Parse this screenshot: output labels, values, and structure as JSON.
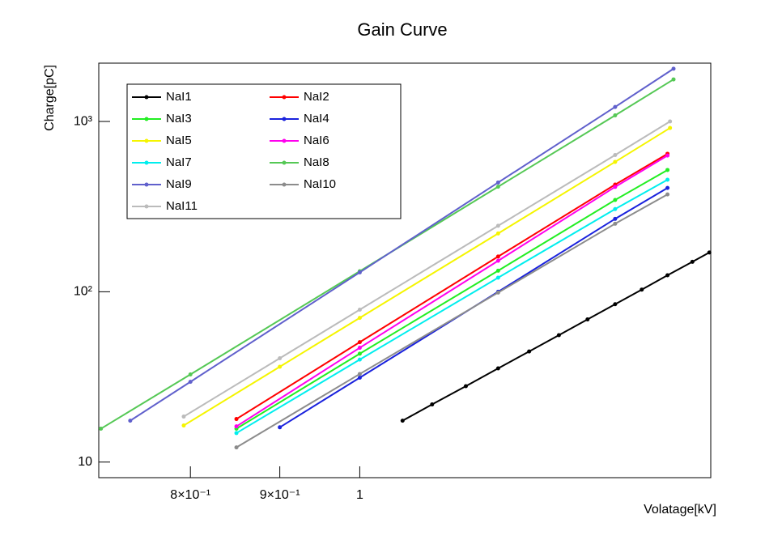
{
  "chart_data": {
    "type": "line",
    "title": "Gain Curve",
    "x_label": "Volatage[kV]",
    "y_label": "Charge[pC]",
    "xlog": true,
    "ylog": true,
    "xlim": [
      0.709,
      1.588
    ],
    "ylim": [
      8.1,
      2200
    ],
    "xticks": [
      {
        "value": 0.8,
        "label": "8×10⁻¹"
      },
      {
        "value": 0.9,
        "label": "9×10⁻¹"
      },
      1
    ],
    "yticks": [
      10,
      {
        "value": 100,
        "label": "10²"
      },
      {
        "value": 1000,
        "label": "10³"
      }
    ],
    "legend": "top-left",
    "series": [
      {
        "name": "NaI1",
        "color": "#000000",
        "x": [
          1.058,
          1.1,
          1.15,
          1.2,
          1.25,
          1.3,
          1.35,
          1.4,
          1.45,
          1.5,
          1.55,
          1.585
        ],
        "values": [
          17.5,
          21.8,
          27.9,
          35.5,
          44.6,
          55.6,
          68.8,
          84.5,
          103,
          125,
          150,
          170
        ]
      },
      {
        "name": "NaI2",
        "color": "#ff0000",
        "x": [
          0.85,
          1,
          1.2,
          1.4,
          1.5
        ],
        "values": [
          17.9,
          50.6,
          161,
          426,
          646
        ]
      },
      {
        "name": "NaI3",
        "color": "#22ee22",
        "x": [
          0.85,
          1,
          1.2,
          1.4,
          1.5
        ],
        "values": [
          15.7,
          43.3,
          133,
          346,
          519
        ]
      },
      {
        "name": "NaI4",
        "color": "#1a22dd",
        "x": [
          0.9,
          1,
          1.2,
          1.4,
          1.5
        ],
        "values": [
          16.0,
          31.3,
          100,
          268,
          407
        ]
      },
      {
        "name": "NaI5",
        "color": "#f5f500",
        "x": [
          0.793,
          0.9,
          1,
          1.2,
          1.4,
          1.505
        ],
        "values": [
          16.4,
          36.3,
          70.3,
          220,
          579,
          916
        ]
      },
      {
        "name": "NaI6",
        "color": "#ff00ee",
        "x": [
          0.85,
          1,
          1.2,
          1.4,
          1.5
        ],
        "values": [
          16.2,
          46.9,
          152,
          413,
          631
        ]
      },
      {
        "name": "NaI7",
        "color": "#00eeee",
        "x": [
          0.85,
          1,
          1.2,
          1.4,
          1.5
        ],
        "values": [
          14.8,
          40,
          121,
          306,
          455
        ]
      },
      {
        "name": "NaI8",
        "color": "#55c855",
        "x": [
          0.711,
          0.8,
          1,
          1.2,
          1.4,
          1.512
        ],
        "values": [
          15.7,
          32.7,
          132,
          414,
          1086,
          1766
        ]
      },
      {
        "name": "NaI9",
        "color": "#6060cc",
        "x": [
          0.739,
          0.8,
          1,
          1.2,
          1.4,
          1.512
        ],
        "values": [
          17.5,
          29.6,
          130,
          438,
          1217,
          2040
        ]
      },
      {
        "name": "NaI10",
        "color": "#8c8c8c",
        "x": [
          0.85,
          1,
          1.2,
          1.4,
          1.5
        ],
        "values": [
          12.2,
          32.9,
          98.9,
          251,
          373
        ]
      },
      {
        "name": "NaI11",
        "color": "#bbbbbb",
        "x": [
          0.793,
          0.9,
          1,
          1.2,
          1.4,
          1.505
        ],
        "values": [
          18.5,
          40.7,
          78.5,
          244,
          635,
          1000
        ]
      }
    ]
  }
}
